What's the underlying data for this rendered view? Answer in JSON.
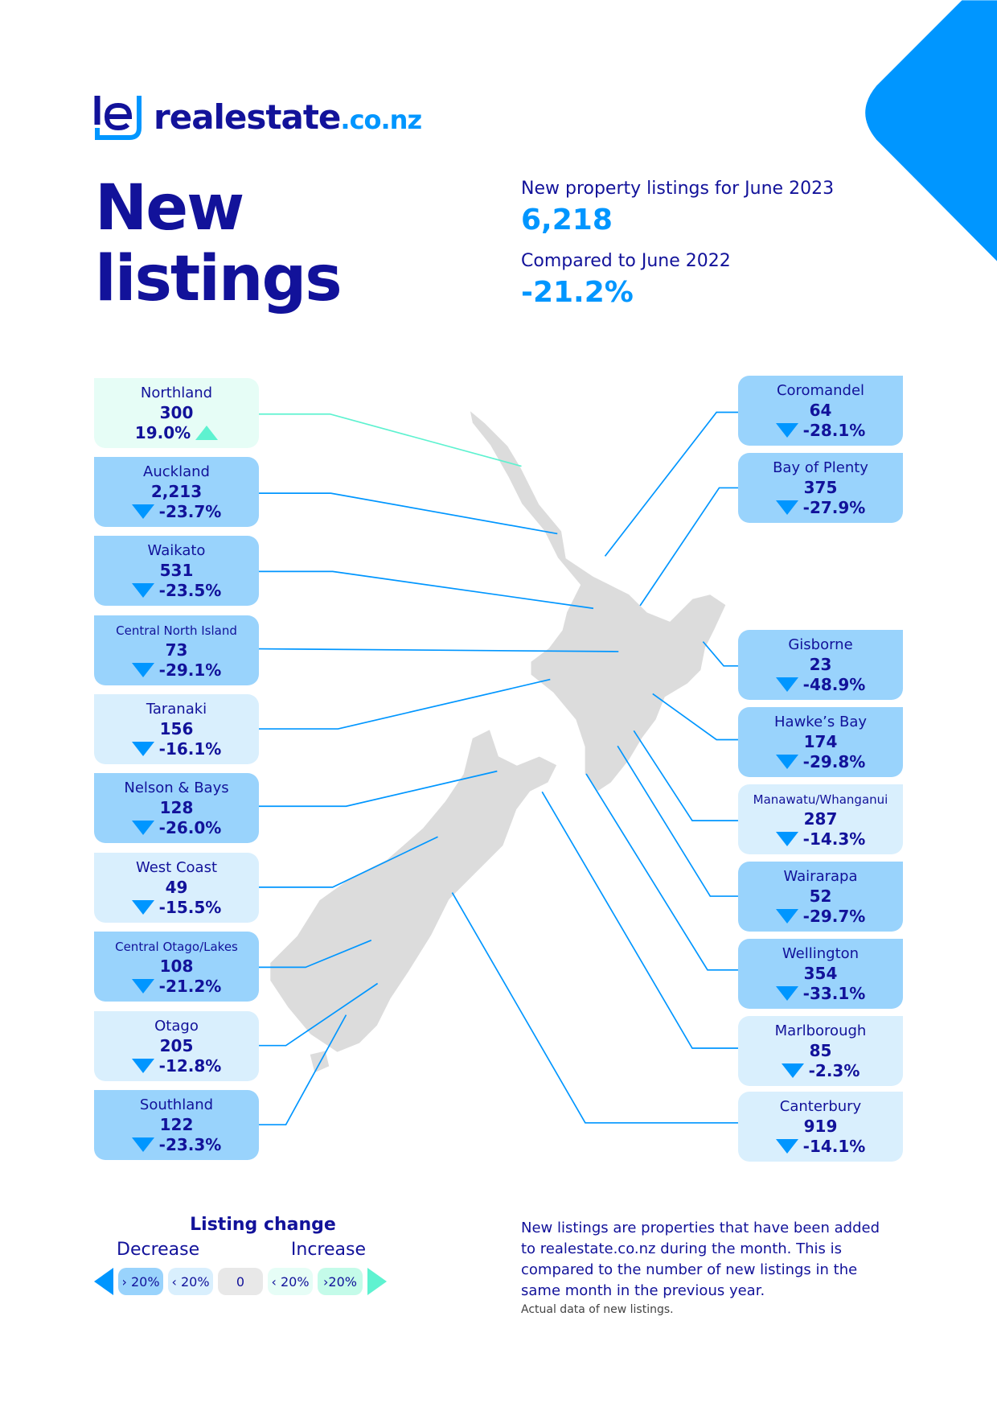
{
  "brand": {
    "name": "realestate",
    "tld": ".co.nz"
  },
  "title": [
    "New",
    "listings"
  ],
  "summary": {
    "listings_label": "New property listings for June 2023",
    "listings_value": "6,218",
    "compare_label": "Compared to June 2022",
    "compare_value": "-21.2%"
  },
  "colors": {
    "navy": "#12129a",
    "accent": "#0096ff",
    "increase": "#5ef2d0",
    "strong_decrease": "#99d3fc",
    "mild_decrease": "#d9effd",
    "mild_increase": "#e6fdf6",
    "strong_increase": "#c4fbe9"
  },
  "regions_left": [
    {
      "name": "Northland",
      "count": "300",
      "change": "19.0%",
      "dir": "up",
      "level": "incmild"
    },
    {
      "name": "Auckland",
      "count": "2,213",
      "change": "-23.7%",
      "dir": "down",
      "level": "strong"
    },
    {
      "name": "Waikato",
      "count": "531",
      "change": "-23.5%",
      "dir": "down",
      "level": "strong"
    },
    {
      "name": "Central North Island",
      "count": "73",
      "change": "-29.1%",
      "dir": "down",
      "level": "strong"
    },
    {
      "name": "Taranaki",
      "count": "156",
      "change": "-16.1%",
      "dir": "down",
      "level": "mild"
    },
    {
      "name": "Nelson & Bays",
      "count": "128",
      "change": "-26.0%",
      "dir": "down",
      "level": "strong"
    },
    {
      "name": "West Coast",
      "count": "49",
      "change": "-15.5%",
      "dir": "down",
      "level": "mild"
    },
    {
      "name": "Central Otago/Lakes",
      "count": "108",
      "change": "-21.2%",
      "dir": "down",
      "level": "strong"
    },
    {
      "name": "Otago",
      "count": "205",
      "change": "-12.8%",
      "dir": "down",
      "level": "mild"
    },
    {
      "name": "Southland",
      "count": "122",
      "change": "-23.3%",
      "dir": "down",
      "level": "strong"
    }
  ],
  "regions_right": [
    {
      "name": "Coromandel",
      "count": "64",
      "change": "-28.1%",
      "dir": "down",
      "level": "strong"
    },
    {
      "name": "Bay of Plenty",
      "count": "375",
      "change": "-27.9%",
      "dir": "down",
      "level": "strong"
    },
    {
      "name": "Gisborne",
      "count": "23",
      "change": "-48.9%",
      "dir": "down",
      "level": "strong"
    },
    {
      "name": "Hawke’s Bay",
      "count": "174",
      "change": "-29.8%",
      "dir": "down",
      "level": "strong"
    },
    {
      "name": "Manawatu/Whanganui",
      "count": "287",
      "change": "-14.3%",
      "dir": "down",
      "level": "mild"
    },
    {
      "name": "Wairarapa",
      "count": "52",
      "change": "-29.7%",
      "dir": "down",
      "level": "strong"
    },
    {
      "name": "Wellington",
      "count": "354",
      "change": "-33.1%",
      "dir": "down",
      "level": "strong"
    },
    {
      "name": "Marlborough",
      "count": "85",
      "change": "-2.3%",
      "dir": "down",
      "level": "mild"
    },
    {
      "name": "Canterbury",
      "count": "919",
      "change": "-14.1%",
      "dir": "down",
      "level": "mild"
    }
  ],
  "legend": {
    "title": "Listing change",
    "decrease": "Decrease",
    "increase": "Increase",
    "chips": [
      "› 20%",
      "‹ 20%",
      "0",
      "‹ 20%",
      "›20%"
    ]
  },
  "note": "New listings are properties that have been added to realestate.co.nz during the month. This is compared to the number of new listings in the same month in the previous year.",
  "footnote": "Actual data of new listings."
}
